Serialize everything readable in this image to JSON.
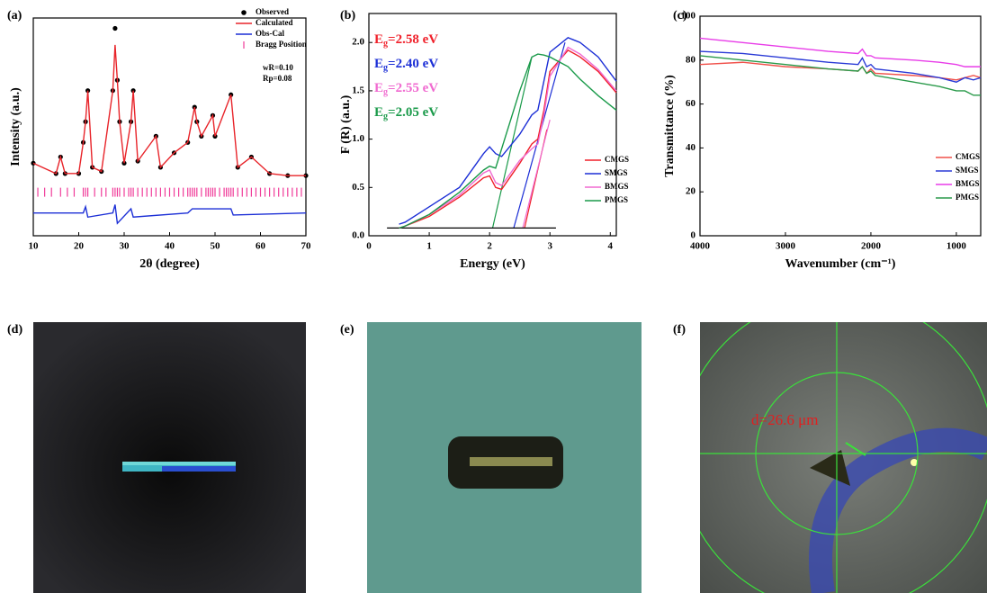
{
  "chart_data": [
    {
      "type": "line",
      "panel": "(a)",
      "xlabel": "2θ (degree)",
      "ylabel": "Intensity (a.u.)",
      "xlim": [
        10,
        70
      ],
      "xticks": [
        10,
        20,
        30,
        40,
        50,
        60,
        70
      ],
      "ylim": [
        0,
        105
      ],
      "legend": "upper right",
      "annotations": [
        "wR=0.10",
        "Rp=0.08"
      ],
      "series": [
        {
          "name": "Observed",
          "color": "#000000",
          "marker": "circle",
          "x": [
            10,
            15,
            16,
            17,
            20,
            21,
            21.5,
            22,
            23,
            25,
            27.5,
            28,
            28.5,
            29,
            30,
            31.5,
            32,
            33,
            37,
            38,
            41,
            44,
            45.5,
            46,
            47,
            49.5,
            50,
            53.5,
            55,
            58,
            62,
            66,
            70
          ],
          "values": [
            35,
            30,
            38,
            30,
            30,
            45,
            55,
            70,
            33,
            31,
            70,
            100,
            75,
            55,
            35,
            55,
            70,
            36,
            48,
            33,
            40,
            45,
            62,
            55,
            48,
            58,
            48,
            68,
            33,
            38,
            30,
            29,
            29
          ]
        },
        {
          "name": "Calculated",
          "color": "#e8242a",
          "marker": "line",
          "x": [
            10,
            15,
            16,
            17,
            20,
            21,
            21.5,
            22,
            23,
            25,
            27.5,
            28,
            28.5,
            29,
            30,
            31.5,
            32,
            33,
            37,
            38,
            41,
            44,
            45.5,
            46,
            47,
            49.5,
            50,
            53.5,
            55,
            58,
            62,
            66,
            70
          ],
          "values": [
            35,
            30,
            38,
            30,
            30,
            45,
            55,
            70,
            33,
            31,
            70,
            92,
            75,
            55,
            35,
            55,
            70,
            36,
            48,
            33,
            40,
            45,
            62,
            55,
            48,
            58,
            48,
            68,
            33,
            38,
            30,
            29,
            29
          ]
        },
        {
          "name": "Obs-Cal",
          "color": "#1c2fd6",
          "marker": "line",
          "x": [
            10,
            21,
            21.5,
            22,
            27.5,
            28,
            28.5,
            31.5,
            32,
            44,
            45,
            53.5,
            54,
            70
          ],
          "values": [
            11,
            11,
            14,
            9,
            11,
            15,
            6,
            13,
            9,
            11,
            13,
            13,
            10,
            11
          ]
        },
        {
          "name": "Bragg Position",
          "color": "#f03c9a",
          "marker": "tick",
          "x": [
            11,
            12.5,
            14,
            16,
            17.5,
            19,
            21,
            21.5,
            22,
            23.5,
            25,
            26,
            27.5,
            28,
            28.5,
            29,
            30,
            31,
            31.5,
            32,
            33,
            34,
            35,
            36,
            37,
            38,
            39,
            40,
            41,
            42,
            43,
            44,
            44.5,
            45,
            45.5,
            46,
            47,
            48,
            48.5,
            49,
            49.5,
            50,
            51,
            52,
            52.5,
            53,
            53.5,
            54,
            55,
            56,
            57,
            58,
            59,
            60,
            61,
            62,
            63,
            64,
            65,
            66,
            67,
            68,
            69
          ]
        }
      ]
    },
    {
      "type": "line",
      "panel": "(b)",
      "xlabel": "Energy (eV)",
      "ylabel": "F (R) (a.u.)",
      "xlim": [
        0,
        4.1
      ],
      "xticks": [
        0,
        1,
        2,
        3,
        4
      ],
      "ylim": [
        0,
        2.3
      ],
      "yticks": [
        {
          "value": 0,
          "label": "0.0"
        },
        0.5,
        {
          "value": 1,
          "label": "1.0"
        },
        1.5,
        {
          "value": 2,
          "label": "2.0"
        }
      ],
      "legend": "center right",
      "annotations": [
        {
          "symbol": "E",
          "subscript": "g",
          "text": "=2.58 eV",
          "color": "#f0202a"
        },
        {
          "symbol": "E",
          "subscript": "g",
          "text": "=2.40 eV",
          "color": "#1c2fd6"
        },
        {
          "symbol": "E",
          "subscript": "g",
          "text": "=2.55 eV",
          "color": "#f06ad0"
        },
        {
          "symbol": "E",
          "subscript": "g",
          "text": "=2.05 eV",
          "color": "#1a9a4a"
        }
      ],
      "tangents": [
        {
          "color": "#f0202a",
          "x": [
            2.58,
            2.95
          ],
          "values": [
            0.08,
            1.1
          ]
        },
        {
          "color": "#1c2fd6",
          "x": [
            2.4,
            3.25
          ],
          "values": [
            0.08,
            2.0
          ]
        },
        {
          "color": "#f06ad0",
          "x": [
            2.55,
            3.0
          ],
          "values": [
            0.08,
            1.2
          ]
        },
        {
          "color": "#1a9a4a",
          "x": [
            2.05,
            2.7
          ],
          "values": [
            0.08,
            1.85
          ]
        },
        {
          "color": "#000000",
          "x": [
            0.3,
            3.1
          ],
          "values": [
            0.08,
            0.08
          ]
        }
      ],
      "series": [
        {
          "name": "CMGS",
          "color": "#f0202a",
          "marker": "line",
          "x": [
            0.5,
            0.6,
            1,
            1.5,
            1.9,
            2.0,
            2.1,
            2.2,
            2.5,
            2.7,
            2.8,
            2.9,
            3.0,
            3.3,
            3.5,
            3.8,
            4.1
          ],
          "values": [
            0.08,
            0.1,
            0.2,
            0.4,
            0.6,
            0.62,
            0.5,
            0.48,
            0.75,
            0.95,
            1.0,
            1.3,
            1.7,
            1.92,
            1.85,
            1.7,
            1.48
          ]
        },
        {
          "name": "SMGS",
          "color": "#1c2fd6",
          "marker": "line",
          "x": [
            0.5,
            0.6,
            1,
            1.5,
            1.9,
            2.0,
            2.1,
            2.2,
            2.5,
            2.7,
            2.8,
            2.9,
            3.0,
            3.3,
            3.5,
            3.8,
            4.1
          ],
          "values": [
            0.12,
            0.14,
            0.3,
            0.5,
            0.85,
            0.92,
            0.85,
            0.82,
            1.05,
            1.25,
            1.3,
            1.6,
            1.9,
            2.05,
            2.0,
            1.85,
            1.6
          ]
        },
        {
          "name": "BMGS",
          "color": "#f06ad0",
          "marker": "line",
          "x": [
            0.5,
            0.6,
            1,
            1.5,
            1.9,
            2.0,
            2.1,
            2.2,
            2.5,
            2.7,
            2.8,
            2.9,
            3.0,
            3.3,
            3.5,
            3.8,
            4.1
          ],
          "values": [
            0.08,
            0.1,
            0.22,
            0.42,
            0.65,
            0.68,
            0.55,
            0.52,
            0.78,
            0.9,
            0.95,
            1.25,
            1.65,
            1.95,
            1.88,
            1.72,
            1.5
          ]
        },
        {
          "name": "PMGS",
          "color": "#1a9a4a",
          "marker": "line",
          "x": [
            0.5,
            0.6,
            1,
            1.5,
            1.9,
            2.0,
            2.1,
            2.2,
            2.5,
            2.7,
            2.8,
            2.9,
            3.0,
            3.3,
            3.5,
            3.8,
            4.1
          ],
          "values": [
            0.08,
            0.1,
            0.22,
            0.45,
            0.68,
            0.72,
            0.7,
            0.9,
            1.5,
            1.85,
            1.88,
            1.87,
            1.85,
            1.75,
            1.62,
            1.45,
            1.3
          ]
        }
      ]
    },
    {
      "type": "line",
      "panel": "(c)",
      "xlabel": "Wavenumber (cm⁻¹)",
      "ylabel": "Transmittance (%)",
      "xlim": [
        4000,
        715
      ],
      "xticks": [
        4000,
        3000,
        2000,
        1000
      ],
      "ylim": [
        0,
        100
      ],
      "yticks": [
        0,
        20,
        40,
        60,
        80,
        100
      ],
      "legend": "center right",
      "series": [
        {
          "name": "CMGS",
          "color": "#f0504a",
          "marker": "line",
          "x": [
            4000,
            3500,
            3000,
            2500,
            2150,
            2100,
            2050,
            2000,
            1950,
            1500,
            1200,
            1000,
            900,
            800,
            715
          ],
          "values": [
            78,
            79,
            77,
            76,
            75,
            77,
            74,
            76,
            74,
            73,
            72,
            71,
            72,
            73,
            72
          ]
        },
        {
          "name": "SMGS",
          "color": "#2a3ad6",
          "marker": "line",
          "x": [
            4000,
            3500,
            3000,
            2500,
            2150,
            2100,
            2050,
            2000,
            1950,
            1500,
            1200,
            1000,
            900,
            800,
            715
          ],
          "values": [
            84,
            83,
            81,
            79,
            78,
            81,
            77,
            78,
            76,
            74,
            72,
            70,
            72,
            71,
            72
          ]
        },
        {
          "name": "BMGS",
          "color": "#e83ce8",
          "marker": "line",
          "x": [
            4000,
            3500,
            3000,
            2500,
            2150,
            2100,
            2050,
            2000,
            1950,
            1500,
            1200,
            1000,
            900,
            800,
            715
          ],
          "values": [
            90,
            88,
            86,
            84,
            83,
            85,
            82,
            82,
            81,
            80,
            79,
            78,
            77,
            77,
            77
          ]
        },
        {
          "name": "PMGS",
          "color": "#2a9a4a",
          "marker": "line",
          "x": [
            4000,
            3500,
            3000,
            2500,
            2150,
            2100,
            2050,
            2000,
            1950,
            1500,
            1200,
            1000,
            900,
            800,
            715
          ],
          "values": [
            82,
            80,
            78,
            76,
            75,
            77,
            74,
            75,
            73,
            70,
            68,
            66,
            66,
            64,
            64
          ]
        }
      ]
    }
  ],
  "photos": [
    {
      "panel": "(d)"
    },
    {
      "panel": "(e)"
    },
    {
      "panel": "(f)",
      "annotation": "d=26.6 μm"
    }
  ]
}
